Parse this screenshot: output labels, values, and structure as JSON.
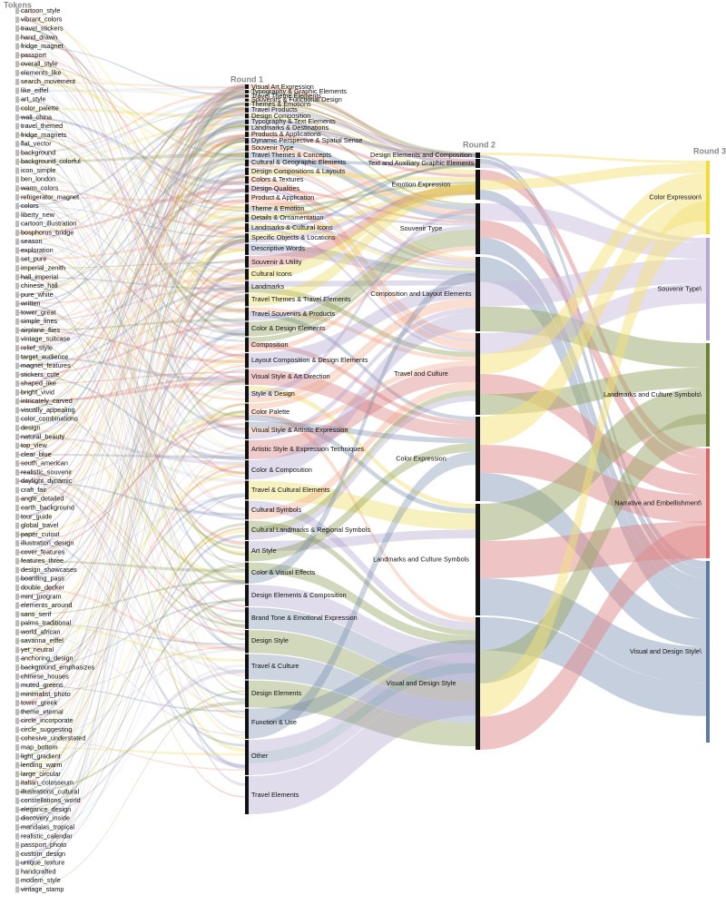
{
  "headers": {
    "tokens": "Tokens",
    "round1": "Round 1",
    "round2": "Round 2",
    "round3": "Round 3"
  },
  "tokens": [
    "cartoon_style",
    "vibrant_colors",
    "travel_stickers",
    "hand_drawn",
    "fridge_magnet",
    "passport",
    "overall_style",
    "elements_like",
    "search_movement",
    "like_eiffel",
    "art_style",
    "color_palette",
    "wall_china",
    "travel_themed",
    "fridge_magnets",
    "flat_vector",
    "background",
    "background_colorful",
    "icon_simple",
    "ben_london",
    "warm_colors",
    "refrigerator_magnet",
    "colors",
    "liberty_new",
    "cartoon_illustration",
    "bosphorus_bridge",
    "season",
    "exploration",
    "set_pure",
    "imperial_zenith",
    "hall_imperial",
    "chinese_hall",
    "pure_white",
    "written",
    "tower_great",
    "simple_lines",
    "airplane_flies",
    "vintage_suitcase",
    "relief_style",
    "target_audience",
    "magnet_features",
    "stickers_cute",
    "shaped_like",
    "bright_vivid",
    "intricately_carved",
    "visually_appealing",
    "color_combinations",
    "design",
    "natural_beauty",
    "top_view",
    "clear_blue",
    "south_american",
    "realistic_souvenir",
    "daylight_dynamic",
    "craft_fair",
    "angle_detailed",
    "earth_background",
    "tour_guide",
    "global_travel",
    "paper_cutout",
    "illustration_design",
    "cover_features",
    "features_three",
    "design_showcases",
    "boarding_pass",
    "double_decker",
    "mini_program",
    "elements_around",
    "sans_serif",
    "palms_traditional",
    "world_african",
    "savanna_eiffel",
    "yet_neutral",
    "anchoring_design",
    "background_emphasizes",
    "chinese_houses",
    "muted_greens",
    "minimalist_photo",
    "tower_greek",
    "theme_eternal",
    "circle_incorporate",
    "circle_suggesting",
    "cohesive_understated",
    "map_bottom",
    "light_gradient",
    "lending_warm",
    "large_circular",
    "italian_colosseum",
    "illustrations_cultural",
    "constellations_world",
    "elegance_design",
    "discovery_inside",
    "mandalas_tropical",
    "realistic_calendar",
    "passport_photo",
    "custom_design",
    "unique_texture",
    "handcrafted",
    "modern_style",
    "vintage_stamp"
  ],
  "round1": [
    "Visual Art Expression",
    "Typography & Graphic Elements",
    "Travel Theme Elements",
    "Souvenirs & Functional Design",
    "Themes & Emotions",
    "Travel Products",
    "Design Composition",
    "Typography & Text Elements",
    "Landmarks & Destinations",
    "Products & Applications",
    "Dynamic Perspective & Spatial Sense",
    "Souvenir Type",
    "Travel Themes & Concepts",
    "Cultural & Geographic Elements",
    "Design Compositions & Layouts",
    "Colors & Textures",
    "Design Qualities",
    "Product & Application",
    "Theme & Emotion",
    "Details & Ornamentation",
    "Landmarks & Cultural Icons",
    "Specific Objects & Locations",
    "Descriptive Words",
    "Souvenir & Utility",
    "Cultural Icons",
    "Landmarks",
    "Travel Themes & Travel Elements",
    "Travel Souvenirs & Products",
    "Color & Design Elements",
    "Composition",
    "Layout Composition & Design Elements",
    "Visual Style & Art Direction",
    "Style & Design",
    "Color Palette",
    "Visual Style & Artistic Expression",
    "Artistic Style & Expression Techniques",
    "Color & Composition",
    "Travel & Cultural Elements",
    "Cultural Symbols",
    "Cultural Landmarks & Regional Symbols",
    "Art Style",
    "Color & Visual Effects",
    "Design Elements & Composition",
    "Brand Tone & Emotional Expression",
    "Design Style",
    "Travel & Culture",
    "Design Elements",
    "Function & Use",
    "Other",
    "Travel Elements"
  ],
  "round2": [
    "Design Elements and Composition",
    "Text and Auxiliary Graphic Elements",
    "Emotion Expression",
    "Souvenir Type",
    "Composition and Layout Elements",
    "Travel and Culture",
    "Color Expression",
    "Landmarks and Culture Symbols",
    "Visual and Design Style"
  ],
  "round3": [
    "Color Expression\\",
    "Souvenir Type\\",
    "Landmarks and Culture Symbols\\",
    "Narrative and Embellishment\\",
    "Visual and Design Style\\"
  ]
}
